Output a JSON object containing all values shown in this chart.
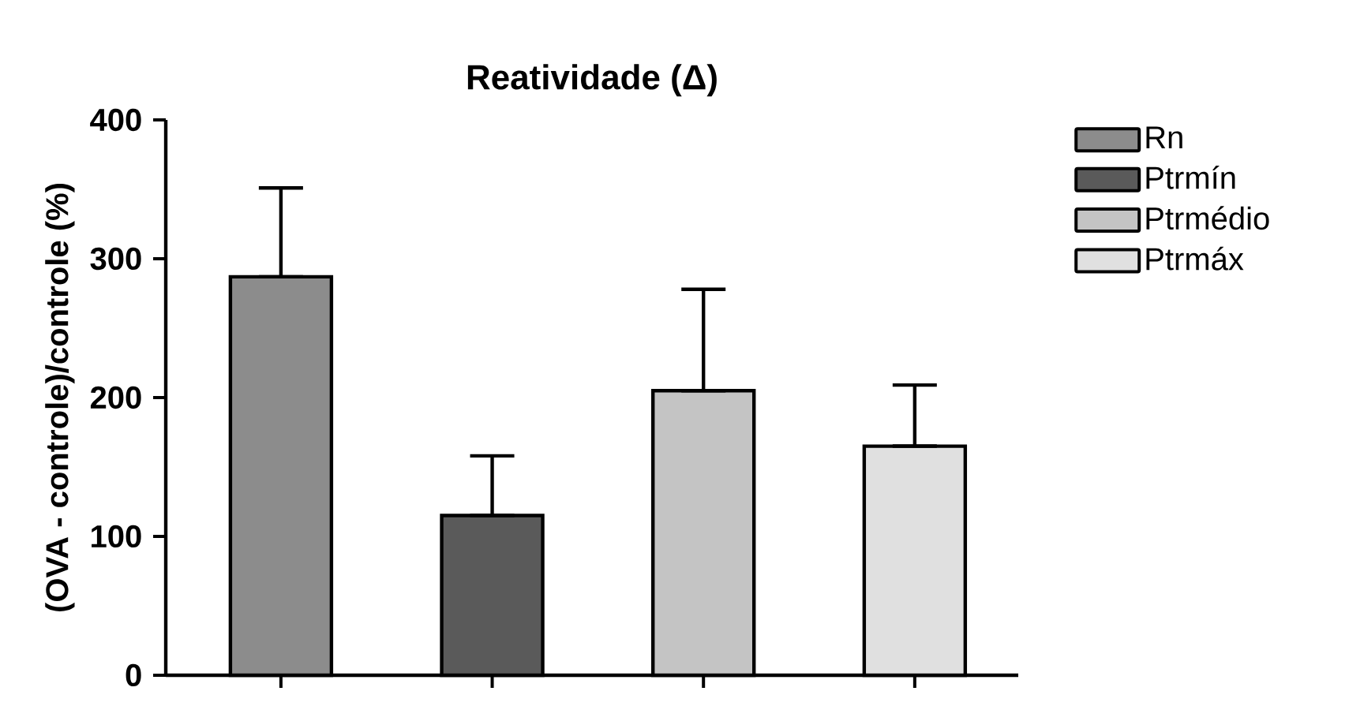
{
  "chart_data": {
    "type": "bar",
    "title": "Reatividade (Δ)",
    "ylabel": "(OVA - controle)/controle  (%)",
    "categories": [
      null,
      null,
      null,
      null
    ],
    "series": [
      {
        "name": "Rn",
        "color": "#8c8c8c",
        "values": [
          287,
          null,
          null,
          null
        ],
        "errors": [
          [
            287,
            351
          ],
          null,
          null,
          null
        ]
      },
      {
        "name": "Ptrmín",
        "color": "#5a5a5a",
        "values": [
          null,
          115,
          null,
          null
        ],
        "errors": [
          null,
          [
            115,
            158
          ],
          null,
          null
        ]
      },
      {
        "name": "Ptrmédio",
        "color": "#c4c4c4",
        "values": [
          null,
          null,
          205,
          null
        ],
        "errors": [
          null,
          null,
          [
            205,
            278
          ],
          null
        ]
      },
      {
        "name": "Ptrmáx",
        "color": "#e0e0e0",
        "values": [
          null,
          null,
          null,
          165
        ],
        "errors": [
          null,
          null,
          null,
          [
            165,
            209
          ]
        ]
      }
    ],
    "ylim": [
      0,
      400
    ],
    "yticks": [
      0,
      100,
      200,
      300,
      400
    ],
    "legend": "right"
  }
}
